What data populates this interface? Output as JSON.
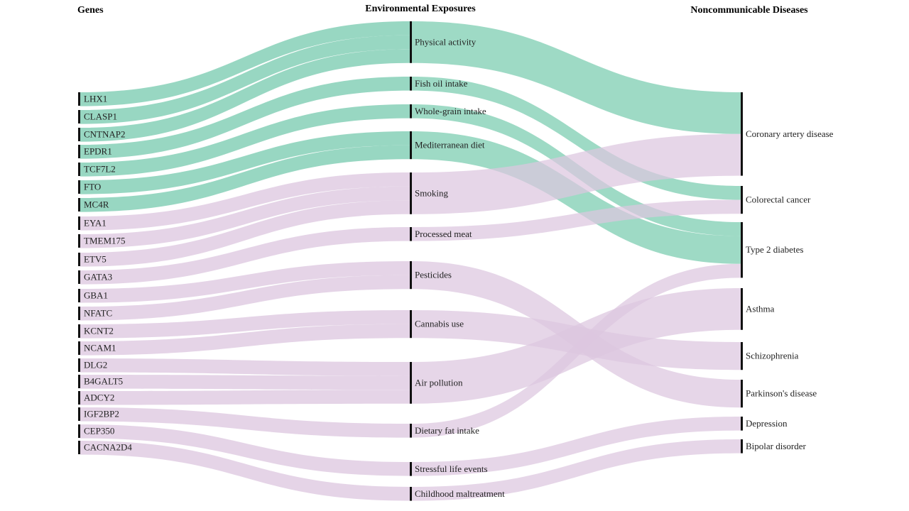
{
  "headers": {
    "genes": "Genes",
    "exposures": "Environmental Exposures",
    "diseases": "Noncommunicable Diseases"
  },
  "genes": [
    "LHX1",
    "CLASP1",
    "CNTNAP2",
    "EPDR1",
    "TCF7L2",
    "FTO",
    "MC4R",
    "EYA1",
    "TMEM175",
    "ETV5",
    "GATA3",
    "GBA1",
    "NFATC",
    "KCNT2",
    "NCAM1",
    "DLG2",
    "B4GALT5",
    "ADCY2",
    "IGF2BP2",
    "CEP350",
    "CACNA2D4"
  ],
  "exposures": [
    "Physical activity",
    "Fish oil intake",
    "Whole-grain intake",
    "Mediterranean diet",
    "Smoking",
    "Processed meat",
    "Pesticides",
    "Cannabis use",
    "Air pollution",
    "Dietary fat intake",
    "Stressful life events",
    "Childhood maltreatment"
  ],
  "diseases": [
    "Coronary artery disease",
    "Colorectal cancer",
    "Type 2 diabetes",
    "Asthma",
    "Schizophrenia",
    "Parkinson's disease",
    "Depression",
    "Bipolar disorder"
  ]
}
